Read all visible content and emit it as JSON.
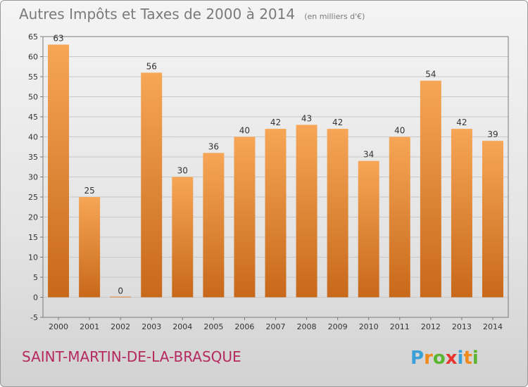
{
  "chart_data": {
    "type": "bar",
    "title": "Autres Impôts et Taxes de 2000 à 2014",
    "subtitle": "(en milliers d'€)",
    "categories": [
      "2000",
      "2001",
      "2002",
      "2003",
      "2004",
      "2005",
      "2006",
      "2007",
      "2008",
      "2009",
      "2010",
      "2011",
      "2012",
      "2013",
      "2014"
    ],
    "values": [
      63,
      25,
      0,
      56,
      30,
      36,
      40,
      42,
      43,
      42,
      34,
      40,
      54,
      42,
      39
    ],
    "ylim": [
      -5,
      65
    ],
    "yticks": [
      -5,
      0,
      5,
      10,
      15,
      20,
      25,
      30,
      35,
      40,
      45,
      50,
      55,
      60,
      65
    ],
    "grid": "horizontal",
    "bar_color": "#f0913a"
  },
  "footer": {
    "commune": "SAINT-MARTIN-DE-LA-BRASQUE",
    "logo_text": "Proxiti",
    "logo_colors": [
      "#3aa0d8",
      "#f08a1c",
      "#5bb531",
      "#e8342c",
      "#3aa0d8",
      "#f08a1c",
      "#5bb531"
    ]
  }
}
